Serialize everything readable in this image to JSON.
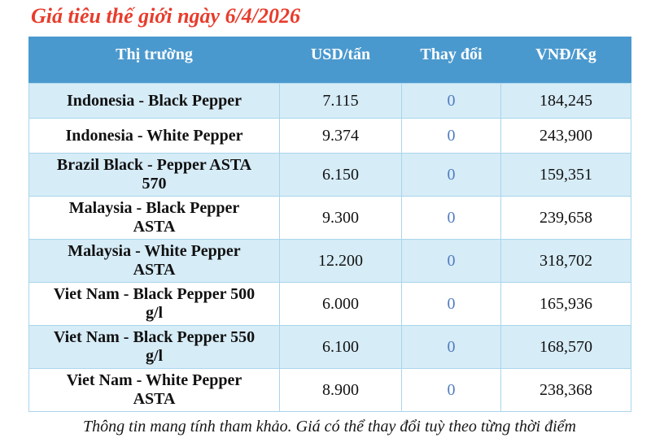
{
  "page": {
    "title": "Giá tiêu thế giới ngày 6/4/2026",
    "footnote": "Thông tin mang tính tham khảo. Giá có thể thay đổi tuỳ theo từng thời điểm"
  },
  "colors": {
    "header_bg": "#4a99ce",
    "row_alt_bg": "#d6ecf7",
    "border": "#a9d6ec",
    "title_red": "#e83c2c",
    "change_blue": "#4f7dbf",
    "header_text": "#ffffff"
  },
  "table": {
    "headers": [
      "Thị trường",
      "USD/tấn",
      "Thay đổi",
      "VNĐ/Kg"
    ],
    "rows": [
      {
        "market": "Indonesia - Black Pepper",
        "usd_per_ton": "7.115",
        "change": "0",
        "vnd_per_kg": "184,245"
      },
      {
        "market": "Indonesia - White Pepper",
        "usd_per_ton": "9.374",
        "change": "0",
        "vnd_per_kg": "243,900"
      },
      {
        "market": "Brazil Black - Pepper ASTA\n570",
        "usd_per_ton": "6.150",
        "change": "0",
        "vnd_per_kg": "159,351"
      },
      {
        "market": "Malaysia - Black Pepper\nASTA",
        "usd_per_ton": "9.300",
        "change": "0",
        "vnd_per_kg": "239,658"
      },
      {
        "market": "Malaysia - White Pepper\nASTA",
        "usd_per_ton": "12.200",
        "change": "0",
        "vnd_per_kg": "318,702"
      },
      {
        "market": "Viet Nam - Black Pepper 500\ng/l",
        "usd_per_ton": "6.000",
        "change": "0",
        "vnd_per_kg": "165,936"
      },
      {
        "market": "Viet Nam - Black Pepper 550\ng/l",
        "usd_per_ton": "6.100",
        "change": "0",
        "vnd_per_kg": "168,570"
      },
      {
        "market": "Viet Nam - White Pepper\nASTA",
        "usd_per_ton": "8.900",
        "change": "0",
        "vnd_per_kg": "238,368"
      }
    ]
  },
  "chart_data": {
    "type": "table",
    "title": "Giá tiêu thế giới ngày 6/4/2026",
    "columns": [
      "Thị trường",
      "USD/tấn",
      "Thay đổi",
      "VNĐ/Kg"
    ],
    "rows": [
      [
        "Indonesia - Black Pepper",
        "7.115",
        "0",
        "184,245"
      ],
      [
        "Indonesia - White Pepper",
        "9.374",
        "0",
        "243,900"
      ],
      [
        "Brazil Black - Pepper ASTA 570",
        "6.150",
        "0",
        "159,351"
      ],
      [
        "Malaysia - Black Pepper ASTA",
        "9.300",
        "0",
        "239,658"
      ],
      [
        "Malaysia - White Pepper ASTA",
        "12.200",
        "0",
        "318,702"
      ],
      [
        "Viet Nam - Black Pepper 500 g/l",
        "6.000",
        "0",
        "165,936"
      ],
      [
        "Viet Nam - Black Pepper 550 g/l",
        "6.100",
        "0",
        "168,570"
      ],
      [
        "Viet Nam - White Pepper ASTA",
        "8.900",
        "0",
        "238,368"
      ]
    ],
    "note": "Thông tin mang tính tham khảo. Giá có thể thay đổi tuỳ theo từng thời điểm"
  }
}
